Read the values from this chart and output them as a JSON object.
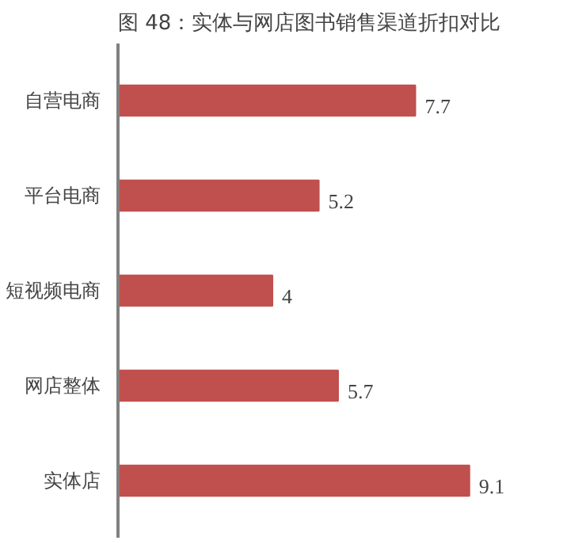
{
  "chart_data": {
    "type": "bar",
    "orientation": "horizontal",
    "title": "图 48：实体与网店图书销售渠道折扣对比",
    "categories": [
      "自营电商",
      "平台电商",
      "短视频电商",
      "网店整体",
      "实体店"
    ],
    "values": [
      7.7,
      5.2,
      4,
      5.7,
      9.1
    ],
    "color": "#c0504d",
    "data_labels": true
  }
}
